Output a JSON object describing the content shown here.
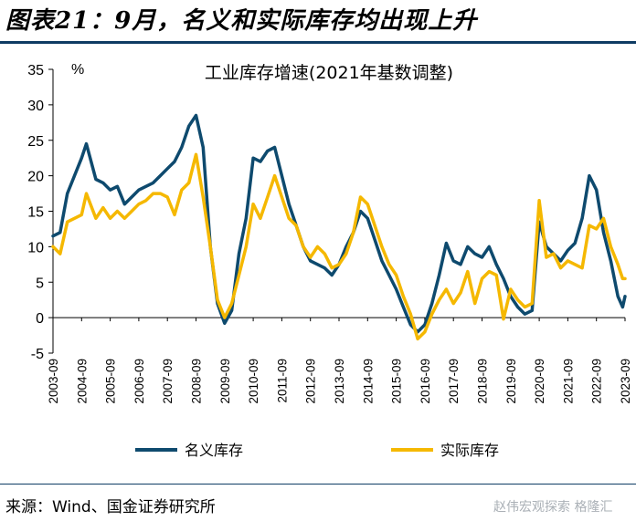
{
  "figure_title": "图表21：9月，名义和实际库存均出现上升",
  "source_text": "来源：Wind、国金证券研究所",
  "watermark_text": "赵伟宏观探索  格隆汇",
  "colors": {
    "nominal": "#0e4a6e",
    "real": "#f5b800",
    "rule": "#0e3b63"
  },
  "chart_data": {
    "type": "line",
    "title": "工业库存增速(2021年基数调整)",
    "ylabel": "%",
    "ylim": [
      -5,
      35
    ],
    "yticks": [
      "35",
      "30",
      "25",
      "20",
      "15",
      "10",
      "5",
      "0",
      "-5"
    ],
    "xticks": [
      "2003-09",
      "2004-09",
      "2005-09",
      "2006-09",
      "2007-09",
      "2008-09",
      "2009-09",
      "2010-09",
      "2011-09",
      "2012-09",
      "2013-09",
      "2014-09",
      "2015-09",
      "2016-09",
      "2017-09",
      "2018-09",
      "2019-09",
      "2020-09",
      "2021-09",
      "2022-09",
      "2023-09"
    ],
    "grid": false,
    "legend_position": "bottom",
    "series": [
      {
        "name": "名义库存",
        "color": "#0e4a6e",
        "points": [
          [
            "2003-09",
            11.5
          ],
          [
            "2003-12",
            12.0
          ],
          [
            "2004-03",
            17.5
          ],
          [
            "2004-06",
            20.0
          ],
          [
            "2004-09",
            22.5
          ],
          [
            "2004-11",
            24.5
          ],
          [
            "2005-03",
            19.5
          ],
          [
            "2005-06",
            19.0
          ],
          [
            "2005-09",
            18.0
          ],
          [
            "2005-12",
            18.5
          ],
          [
            "2006-03",
            16.0
          ],
          [
            "2006-06",
            17.0
          ],
          [
            "2006-09",
            18.0
          ],
          [
            "2006-12",
            18.5
          ],
          [
            "2007-03",
            19.0
          ],
          [
            "2007-06",
            20.0
          ],
          [
            "2007-09",
            21.0
          ],
          [
            "2007-12",
            22.0
          ],
          [
            "2008-03",
            24.0
          ],
          [
            "2008-06",
            27.0
          ],
          [
            "2008-09",
            28.5
          ],
          [
            "2008-12",
            24.0
          ],
          [
            "2009-03",
            10.0
          ],
          [
            "2009-06",
            2.0
          ],
          [
            "2009-09",
            -0.8
          ],
          [
            "2009-12",
            1.0
          ],
          [
            "2010-03",
            9.0
          ],
          [
            "2010-06",
            14.0
          ],
          [
            "2010-09",
            22.5
          ],
          [
            "2010-12",
            22.0
          ],
          [
            "2011-03",
            23.5
          ],
          [
            "2011-06",
            24.0
          ],
          [
            "2011-09",
            20.0
          ],
          [
            "2011-12",
            16.0
          ],
          [
            "2012-03",
            13.0
          ],
          [
            "2012-06",
            10.0
          ],
          [
            "2012-09",
            8.0
          ],
          [
            "2012-12",
            7.5
          ],
          [
            "2013-03",
            7.0
          ],
          [
            "2013-06",
            6.0
          ],
          [
            "2013-09",
            7.5
          ],
          [
            "2013-12",
            10.0
          ],
          [
            "2014-03",
            12.0
          ],
          [
            "2014-06",
            15.0
          ],
          [
            "2014-09",
            14.0
          ],
          [
            "2014-12",
            11.0
          ],
          [
            "2015-03",
            8.0
          ],
          [
            "2015-06",
            6.0
          ],
          [
            "2015-09",
            4.0
          ],
          [
            "2015-12",
            1.5
          ],
          [
            "2016-03",
            -1.0
          ],
          [
            "2016-06",
            -2.0
          ],
          [
            "2016-09",
            -1.0
          ],
          [
            "2016-12",
            2.0
          ],
          [
            "2017-03",
            6.0
          ],
          [
            "2017-06",
            10.5
          ],
          [
            "2017-09",
            8.0
          ],
          [
            "2017-12",
            7.5
          ],
          [
            "2018-03",
            10.0
          ],
          [
            "2018-06",
            9.0
          ],
          [
            "2018-09",
            8.5
          ],
          [
            "2018-12",
            10.0
          ],
          [
            "2019-03",
            7.5
          ],
          [
            "2019-06",
            5.5
          ],
          [
            "2019-09",
            3.0
          ],
          [
            "2019-12",
            1.5
          ],
          [
            "2020-03",
            0.5
          ],
          [
            "2020-06",
            1.0
          ],
          [
            "2020-09",
            13.5
          ],
          [
            "2020-12",
            10.0
          ],
          [
            "2021-03",
            9.0
          ],
          [
            "2021-06",
            8.0
          ],
          [
            "2021-09",
            9.5
          ],
          [
            "2021-12",
            10.5
          ],
          [
            "2022-03",
            14.0
          ],
          [
            "2022-06",
            20.0
          ],
          [
            "2022-09",
            18.0
          ],
          [
            "2022-12",
            12.0
          ],
          [
            "2023-03",
            8.0
          ],
          [
            "2023-06",
            3.0
          ],
          [
            "2023-08",
            1.5
          ],
          [
            "2023-09",
            3.0
          ]
        ]
      },
      {
        "name": "实际库存",
        "color": "#f5b800",
        "points": [
          [
            "2003-09",
            10.0
          ],
          [
            "2003-12",
            9.0
          ],
          [
            "2004-03",
            13.5
          ],
          [
            "2004-06",
            14.0
          ],
          [
            "2004-09",
            14.5
          ],
          [
            "2004-11",
            17.5
          ],
          [
            "2005-03",
            14.0
          ],
          [
            "2005-06",
            15.5
          ],
          [
            "2005-09",
            14.0
          ],
          [
            "2005-12",
            15.0
          ],
          [
            "2006-03",
            14.0
          ],
          [
            "2006-06",
            15.0
          ],
          [
            "2006-09",
            16.0
          ],
          [
            "2006-12",
            16.5
          ],
          [
            "2007-03",
            17.5
          ],
          [
            "2007-06",
            17.5
          ],
          [
            "2007-09",
            17.0
          ],
          [
            "2007-12",
            14.5
          ],
          [
            "2008-03",
            18.0
          ],
          [
            "2008-06",
            19.0
          ],
          [
            "2008-09",
            23.0
          ],
          [
            "2008-12",
            17.0
          ],
          [
            "2009-03",
            10.0
          ],
          [
            "2009-06",
            2.5
          ],
          [
            "2009-09",
            0.0
          ],
          [
            "2009-12",
            2.0
          ],
          [
            "2010-03",
            6.0
          ],
          [
            "2010-06",
            10.0
          ],
          [
            "2010-09",
            16.0
          ],
          [
            "2010-12",
            14.0
          ],
          [
            "2011-03",
            17.0
          ],
          [
            "2011-06",
            20.0
          ],
          [
            "2011-09",
            17.0
          ],
          [
            "2011-12",
            14.0
          ],
          [
            "2012-03",
            13.0
          ],
          [
            "2012-06",
            10.0
          ],
          [
            "2012-09",
            8.5
          ],
          [
            "2012-12",
            10.0
          ],
          [
            "2013-03",
            9.0
          ],
          [
            "2013-06",
            7.0
          ],
          [
            "2013-09",
            7.5
          ],
          [
            "2013-12",
            9.0
          ],
          [
            "2014-03",
            12.0
          ],
          [
            "2014-06",
            17.0
          ],
          [
            "2014-09",
            16.0
          ],
          [
            "2014-12",
            13.0
          ],
          [
            "2015-03",
            10.0
          ],
          [
            "2015-06",
            7.5
          ],
          [
            "2015-09",
            6.0
          ],
          [
            "2015-12",
            3.0
          ],
          [
            "2016-03",
            0.5
          ],
          [
            "2016-06",
            -3.0
          ],
          [
            "2016-09",
            -2.0
          ],
          [
            "2016-12",
            0.5
          ],
          [
            "2017-03",
            2.5
          ],
          [
            "2017-06",
            4.0
          ],
          [
            "2017-09",
            2.0
          ],
          [
            "2017-12",
            3.5
          ],
          [
            "2018-03",
            6.5
          ],
          [
            "2018-06",
            2.0
          ],
          [
            "2018-09",
            5.5
          ],
          [
            "2018-12",
            6.5
          ],
          [
            "2019-03",
            6.0
          ],
          [
            "2019-06",
            -0.2
          ],
          [
            "2019-09",
            4.0
          ],
          [
            "2019-12",
            2.5
          ],
          [
            "2020-03",
            1.5
          ],
          [
            "2020-06",
            2.0
          ],
          [
            "2020-09",
            16.5
          ],
          [
            "2020-12",
            8.5
          ],
          [
            "2021-03",
            9.0
          ],
          [
            "2021-06",
            7.0
          ],
          [
            "2021-09",
            8.0
          ],
          [
            "2021-12",
            7.5
          ],
          [
            "2022-03",
            7.0
          ],
          [
            "2022-06",
            13.0
          ],
          [
            "2022-09",
            12.5
          ],
          [
            "2022-12",
            14.0
          ],
          [
            "2023-03",
            10.0
          ],
          [
            "2023-06",
            7.5
          ],
          [
            "2023-08",
            5.5
          ],
          [
            "2023-09",
            5.5
          ]
        ]
      }
    ]
  }
}
